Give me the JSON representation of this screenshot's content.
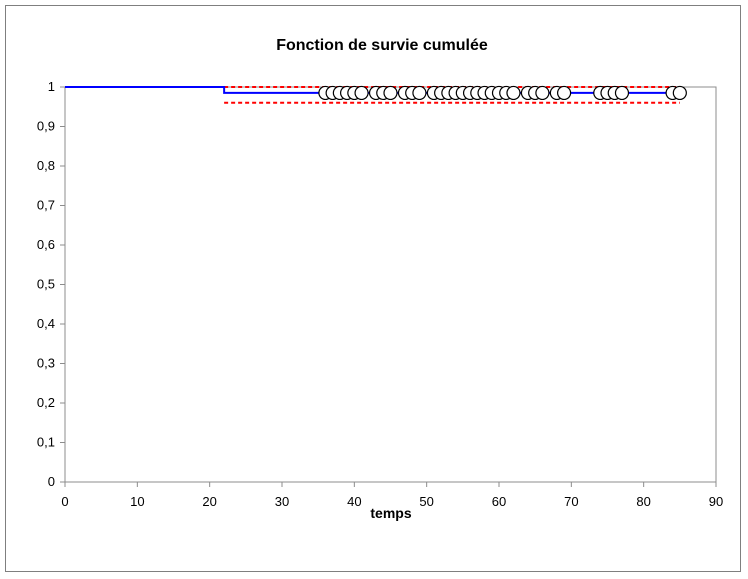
{
  "chart_data": {
    "type": "line",
    "title": "Fonction de survie cumulée",
    "xlabel": "temps",
    "ylabel": "",
    "xlim": [
      0,
      90
    ],
    "ylim": [
      0,
      1
    ],
    "x_ticks": [
      "0",
      "10",
      "20",
      "30",
      "40",
      "50",
      "60",
      "70",
      "80",
      "90"
    ],
    "y_ticks": [
      "0",
      "0,1",
      "0,2",
      "0,3",
      "0,4",
      "0,5",
      "0,6",
      "0,7",
      "0,8",
      "0,9",
      "1"
    ],
    "grid": false,
    "legend": "none",
    "series": [
      {
        "kind": "survival",
        "color": "#0000ff",
        "style": "solid",
        "steps": [
          [
            0,
            1.0
          ],
          [
            22,
            0.985
          ],
          [
            85,
            0.985
          ]
        ]
      },
      {
        "kind": "upper-bound",
        "color": "#ff0000",
        "style": "dashed",
        "steps": [
          [
            22,
            1.0
          ],
          [
            85,
            1.0
          ]
        ]
      },
      {
        "kind": "lower-bound",
        "color": "#ff0000",
        "style": "dashed",
        "steps": [
          [
            22,
            0.96
          ],
          [
            85,
            0.96
          ]
        ]
      }
    ],
    "censored": {
      "y": 0.985,
      "x": [
        36,
        37,
        38,
        39,
        40,
        41,
        43,
        44,
        45,
        47,
        48,
        49,
        51,
        52,
        53,
        54,
        55,
        56,
        57,
        58,
        59,
        60,
        61,
        62,
        64,
        65,
        66,
        68,
        69,
        74,
        75,
        76,
        77,
        84,
        85
      ]
    }
  }
}
